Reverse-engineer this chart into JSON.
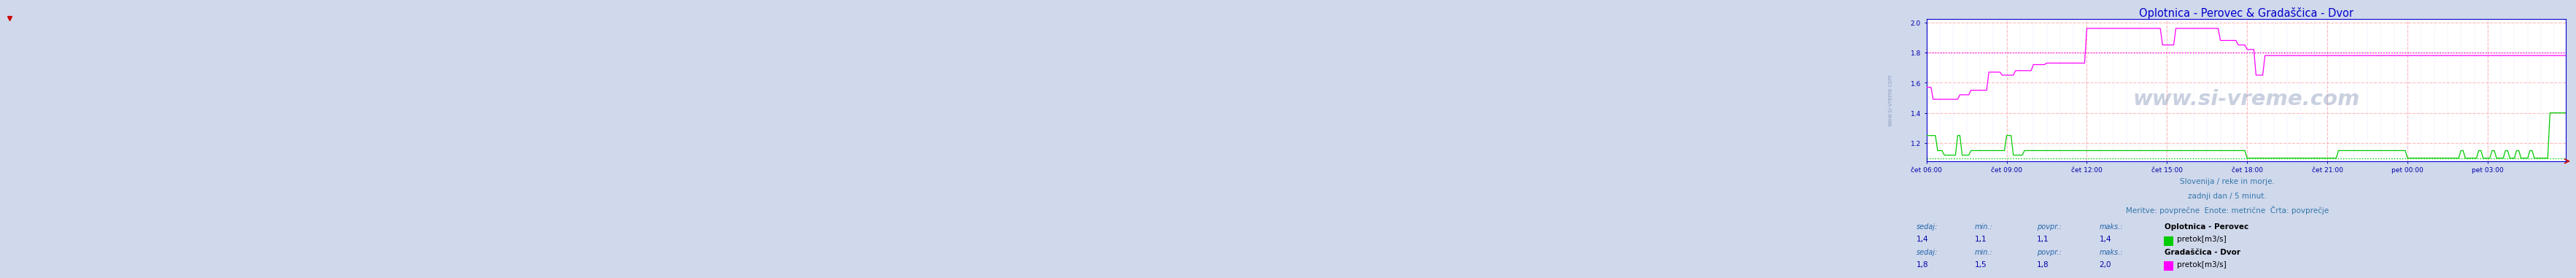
{
  "title": "Oplotnica - Perovec & Gradaščica - Dvor",
  "title_color": "#0000cc",
  "bg_color": "#d0d8ec",
  "plot_bg": "#ffffff",
  "ylim": [
    1.08,
    2.02
  ],
  "n": 288,
  "yticks": [
    1.2,
    1.4,
    1.6,
    1.8,
    2.0
  ],
  "xtick_pos": [
    0,
    36,
    72,
    108,
    144,
    180,
    216,
    252
  ],
  "xtick_labels": [
    "čet 06:00",
    "čet 09:00",
    "čet 12:00",
    "čet 15:00",
    "čet 18:00",
    "čet 21:00",
    "pet 00:00",
    "pet 03:00"
  ],
  "color_g": "#00cc00",
  "color_m": "#ff00ff",
  "avg_g": 1.1,
  "avg_m": 1.8,
  "subtitle_color": "#3377aa",
  "subtitle1": "Slovenija / reke in morje.",
  "subtitle2": "zadnji dan / 5 minut.",
  "subtitle3": "Meritve: povprečne  Enote: metrične  Črta: povprečje",
  "label1": "Oplotnica - Perovec",
  "label2": "Gradaščica - Dvor",
  "sub1": "pretok[m3/s]",
  "sub2": "pretok[m3/s]",
  "s1_sedaj": "1,4",
  "s1_min": "1,1",
  "s1_povpr": "1,1",
  "s1_maks": "1,4",
  "s2_sedaj": "1,8",
  "s2_min": "1,5",
  "s2_povpr": "1,8",
  "s2_maks": "2,0",
  "watermark": "www.si-vreme.com",
  "left_label": "www.si-vreme.com",
  "stat_label_color": "#2266aa",
  "stat_val_color": "#0000aa",
  "legend_title_color": "#000000"
}
